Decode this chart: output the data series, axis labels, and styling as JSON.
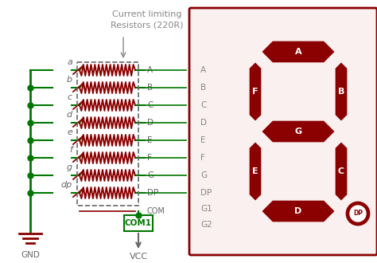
{
  "bg_color": "#ffffff",
  "green": "#007700",
  "dark_red": "#8B0000",
  "gray": "#888888",
  "dark_gray": "#666666",
  "pin_labels_left": [
    "a",
    "b",
    "c",
    "d",
    "e",
    "f",
    "g",
    "dp"
  ],
  "pin_labels_right": [
    "A",
    "B",
    "C",
    "D",
    "E",
    "F",
    "G",
    "DP"
  ],
  "segment_labels": [
    "A",
    "B",
    "C",
    "D",
    "E",
    "F",
    "G",
    "DP",
    "G1",
    "G2"
  ],
  "title_line1": "Current limiting",
  "title_line2": "Resistors (220R)",
  "gnd_label": "GND",
  "vcc_label": "VCC",
  "com_label": "COM",
  "com1_label": "COM1"
}
